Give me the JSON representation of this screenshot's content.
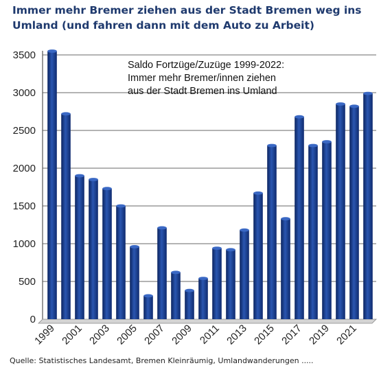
{
  "chart_data": {
    "type": "bar",
    "title": "Immer mehr Bremer ziehen aus der Stadt Bremen weg ins Umland (und fahren dann mit dem Auto zu Arbeit)",
    "annotation": "Saldo Fortzüge/Zuzüge 1999-2022: Immer mehr Bremer/innen ziehen aus der Stadt Bremen ins Umland",
    "xlabel": "",
    "ylabel": "",
    "ylim": [
      0,
      3500
    ],
    "yticks": [
      0,
      500,
      1000,
      1500,
      2000,
      2500,
      3000,
      3500
    ],
    "grid": true,
    "categories": [
      "1999",
      "2000",
      "2001",
      "2002",
      "2003",
      "2004",
      "2005",
      "2006",
      "2007",
      "2008",
      "2009",
      "2010",
      "2011",
      "2012",
      "2013",
      "2014",
      "2015",
      "2016",
      "2017",
      "2018",
      "2019",
      "2020",
      "2021",
      "2022"
    ],
    "x_tick_labels": [
      "1999",
      "2001",
      "2003",
      "2005",
      "2007",
      "2009",
      "2011",
      "2013",
      "2015",
      "2017",
      "2019",
      "2021"
    ],
    "values": [
      3550,
      2720,
      1900,
      1850,
      1730,
      1500,
      960,
      310,
      1210,
      620,
      380,
      540,
      940,
      920,
      1180,
      1670,
      2300,
      1330,
      2680,
      2300,
      2350,
      2850,
      2820,
      2990
    ],
    "bar_color": "#1c3f8c"
  },
  "source": "Quelle: Statistisches Landesamt, Bremen Kleinräumig, Umlandwanderungen ....."
}
